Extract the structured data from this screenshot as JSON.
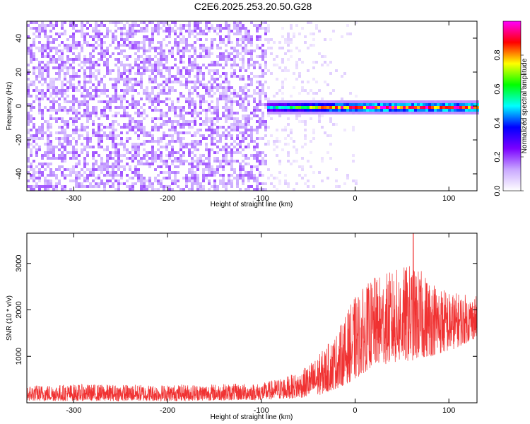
{
  "title": "C2E6.2025.253.20.50.G28",
  "chart_data": [
    {
      "type": "heatmap",
      "name": "spectrogram",
      "xlabel": "Height of straight line (km)",
      "ylabel": "Frequency (Hz)",
      "xlim": [
        -350,
        130
      ],
      "ylim": [
        -50,
        50
      ],
      "x_ticks": [
        -300,
        -200,
        -100,
        0,
        100
      ],
      "y_ticks": [
        -40,
        -20,
        0,
        20,
        40
      ],
      "colorbar": {
        "label": "Normalized spectral amplitude",
        "range": [
          0,
          1
        ],
        "ticks": [
          "0.0",
          "0.2",
          "0.4",
          "0.6",
          "0.8"
        ],
        "tick_values": [
          0.0,
          0.2,
          0.4,
          0.6,
          0.8
        ],
        "colors": [
          "#ffffff",
          "#c9a8ff",
          "#7a00ff",
          "#0000ff",
          "#00ffff",
          "#00ff00",
          "#ffff00",
          "#ff0000",
          "#ff00ff"
        ]
      },
      "description_regions": [
        {
          "x_range": [
            -350,
            -95
          ],
          "freq_range": [
            -50,
            50
          ],
          "level": "noise-dense",
          "amplitude": 0.15
        },
        {
          "x_range": [
            -95,
            0
          ],
          "freq_range": [
            -50,
            50
          ],
          "level": "noise-sparse",
          "amplitude": 0.05
        },
        {
          "x_range": [
            -95,
            130
          ],
          "freq_range": [
            -4,
            4
          ],
          "level": "signal-band",
          "amplitude": 0.9
        }
      ]
    },
    {
      "type": "line",
      "name": "snr",
      "xlabel": "Height of straight line (km)",
      "ylabel": "SNR (10 * v/v)",
      "xlim": [
        -350,
        130
      ],
      "ylim": [
        0,
        3650
      ],
      "x_ticks": [
        -300,
        -200,
        -100,
        0,
        100
      ],
      "y_ticks": [
        1000,
        2000,
        3000
      ],
      "color": "#f03232",
      "envelope": [
        {
          "x": -350,
          "low": 40,
          "high": 380
        },
        {
          "x": -300,
          "low": 40,
          "high": 400
        },
        {
          "x": -200,
          "low": 40,
          "high": 390
        },
        {
          "x": -100,
          "low": 60,
          "high": 420
        },
        {
          "x": -60,
          "low": 100,
          "high": 650
        },
        {
          "x": -40,
          "low": 150,
          "high": 1000
        },
        {
          "x": -20,
          "low": 300,
          "high": 1500
        },
        {
          "x": 0,
          "low": 500,
          "high": 2300
        },
        {
          "x": 20,
          "low": 800,
          "high": 2700
        },
        {
          "x": 60,
          "low": 900,
          "high": 3000
        },
        {
          "x": 100,
          "low": 1100,
          "high": 2400
        },
        {
          "x": 130,
          "low": 1400,
          "high": 2300
        }
      ],
      "peak": {
        "x": 62,
        "y": 3650
      }
    }
  ]
}
